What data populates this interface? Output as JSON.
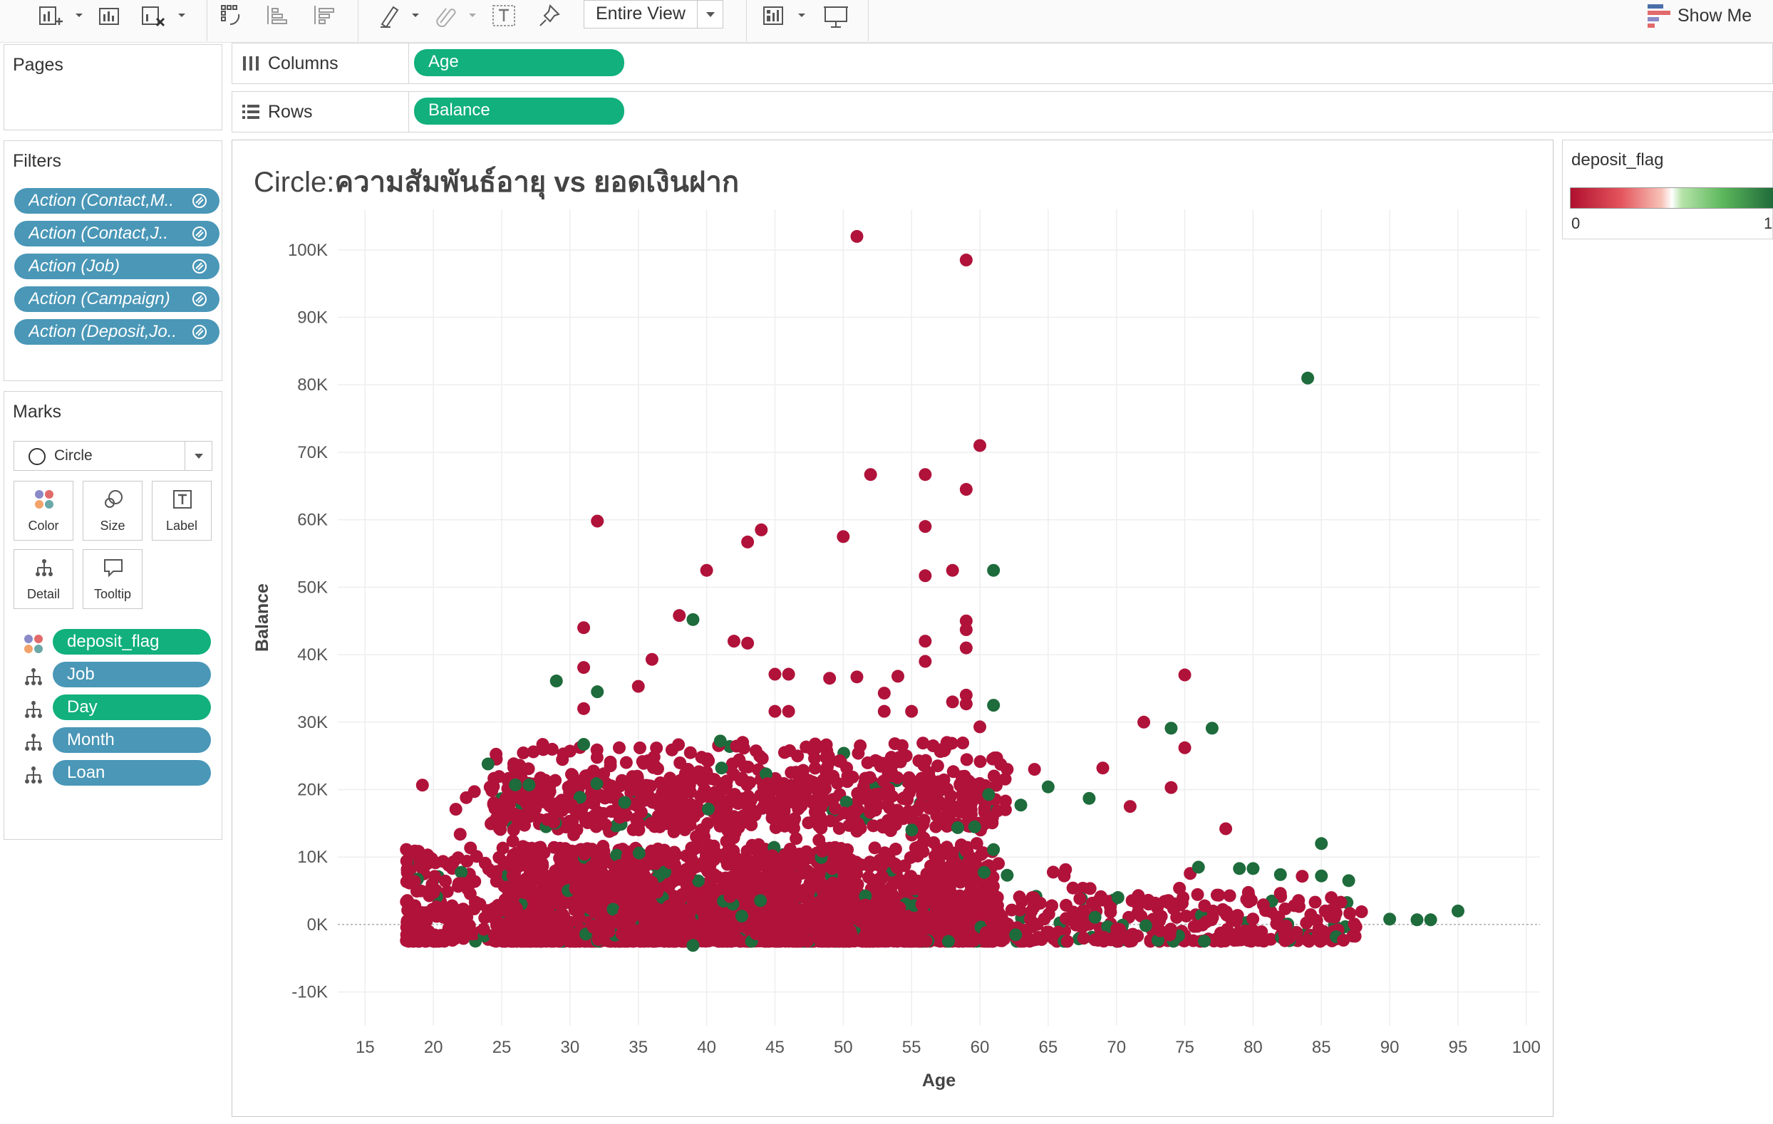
{
  "toolbar": {
    "view_mode": "Entire View",
    "show_me_label": "Show Me"
  },
  "shelves": {
    "columns_label": "Columns",
    "columns_field": "Age",
    "rows_label": "Rows",
    "rows_field": "Balance"
  },
  "pages": {
    "title": "Pages"
  },
  "filters": {
    "title": "Filters",
    "items": [
      "Action (Contact,M..",
      "Action (Contact,J..",
      "Action (Job)",
      "Action (Campaign)",
      "Action (Deposit,Jo.."
    ]
  },
  "marks": {
    "title": "Marks",
    "mark_type": "Circle",
    "buttons": [
      "Color",
      "Size",
      "Label",
      "Detail",
      "Tooltip"
    ],
    "fields": [
      {
        "name": "deposit_flag",
        "icon": "color-icon",
        "color": "#11b07c"
      },
      {
        "name": "Job",
        "icon": "detail-icon",
        "color": "#4a97b7"
      },
      {
        "name": "Day",
        "icon": "detail-icon",
        "color": "#11b07c"
      },
      {
        "name": "Month",
        "icon": "detail-icon",
        "color": "#4a97b7"
      },
      {
        "name": "Loan",
        "icon": "detail-icon",
        "color": "#4a97b7"
      }
    ]
  },
  "legend": {
    "title": "deposit_flag",
    "min": "0",
    "max": "1",
    "low_color": "#b0102f",
    "high_color": "#1f6b3a"
  },
  "chart_data": {
    "type": "scatter",
    "title_prefix": "Circle:",
    "title_main": "ความสัมพันธ์อายุ vs ยอดเงินฝาก",
    "xlabel": "Age",
    "ylabel": "Balance",
    "xlim": [
      13,
      101
    ],
    "ylim": [
      -15000,
      106000
    ],
    "x_ticks": [
      "15",
      "20",
      "25",
      "30",
      "35",
      "40",
      "45",
      "50",
      "55",
      "60",
      "65",
      "70",
      "75",
      "80",
      "85",
      "90",
      "95",
      "100"
    ],
    "y_ticks": [
      "-10K",
      "0K",
      "10K",
      "20K",
      "30K",
      "40K",
      "50K",
      "60K",
      "70K",
      "80K",
      "90K",
      "100K"
    ],
    "grid": true,
    "colors": {
      "no_deposit": "#b0123a",
      "deposit": "#1e6b3c"
    },
    "series": [
      {
        "name": "deposit_flag = 0",
        "color": "#b0123a",
        "points": [
          [
            51,
            102000
          ],
          [
            59,
            98500
          ],
          [
            60,
            71000
          ],
          [
            52,
            66700
          ],
          [
            56,
            66700
          ],
          [
            59,
            64500
          ],
          [
            32,
            59800
          ],
          [
            56,
            59000
          ],
          [
            44,
            58500
          ],
          [
            43,
            56700
          ],
          [
            50,
            57500
          ],
          [
            40,
            52500
          ],
          [
            56,
            51700
          ],
          [
            58,
            52500
          ],
          [
            38,
            45800
          ],
          [
            59,
            45000
          ],
          [
            59,
            43700
          ],
          [
            31,
            44000
          ],
          [
            42,
            42000
          ],
          [
            43,
            41700
          ],
          [
            59,
            41000
          ],
          [
            56,
            42000
          ],
          [
            36,
            39300
          ],
          [
            31,
            38100
          ],
          [
            45,
            37100
          ],
          [
            46,
            37100
          ],
          [
            49,
            36500
          ],
          [
            51,
            36700
          ],
          [
            54,
            36800
          ],
          [
            56,
            39000
          ],
          [
            75,
            37000
          ],
          [
            35,
            35300
          ],
          [
            53,
            34300
          ],
          [
            59,
            34000
          ],
          [
            58,
            33000
          ],
          [
            59,
            32700
          ],
          [
            31,
            32000
          ],
          [
            45,
            31600
          ],
          [
            46,
            31600
          ],
          [
            53,
            31600
          ],
          [
            55,
            31600
          ],
          [
            60,
            29300
          ],
          [
            72,
            30000
          ],
          [
            75,
            26200
          ],
          [
            74,
            20300
          ],
          [
            78,
            14200
          ],
          [
            28,
            26700
          ],
          [
            30,
            25700
          ],
          [
            62,
            23000
          ],
          [
            64,
            23000
          ],
          [
            69,
            23200
          ],
          [
            71,
            17500
          ],
          [
            23,
            19700
          ]
        ]
      },
      {
        "name": "deposit_flag = 1",
        "color": "#1e6b3c",
        "points": [
          [
            84,
            81000
          ],
          [
            61,
            52500
          ],
          [
            39,
            45200
          ],
          [
            29,
            36100
          ],
          [
            32,
            34500
          ],
          [
            61,
            32500
          ],
          [
            74,
            29100
          ],
          [
            77,
            29100
          ],
          [
            31,
            26700
          ],
          [
            41,
            27200
          ],
          [
            24,
            23800
          ],
          [
            26,
            20700
          ],
          [
            27,
            20700
          ],
          [
            34,
            18100
          ],
          [
            63,
            17700
          ],
          [
            65,
            20400
          ],
          [
            68,
            18700
          ],
          [
            85,
            12000
          ],
          [
            87,
            6500
          ],
          [
            90,
            800
          ],
          [
            92,
            700
          ],
          [
            93,
            700
          ],
          [
            95,
            2000
          ],
          [
            85,
            7200
          ],
          [
            82,
            7400
          ],
          [
            76,
            8500
          ],
          [
            79,
            8300
          ],
          [
            80,
            8300
          ],
          [
            61,
            11100
          ],
          [
            62,
            7300
          ],
          [
            39,
            -3100
          ]
        ]
      }
    ]
  }
}
